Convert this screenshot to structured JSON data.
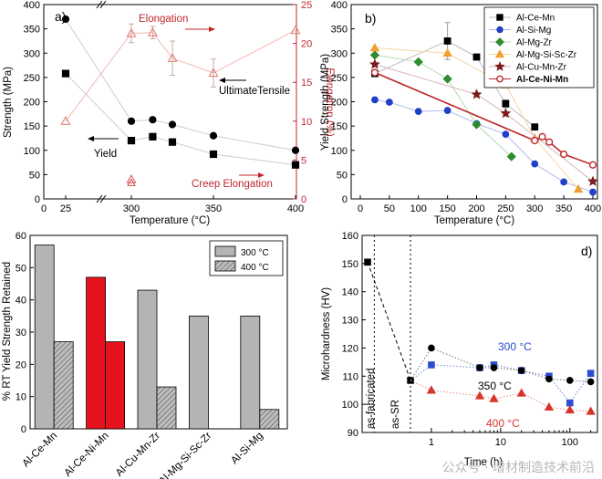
{
  "watermark": "公众号 · 增材制造技术前沿",
  "chart_data": [
    {
      "panel": "a)",
      "type": "scatter",
      "xlabel": "Temperature (°C)",
      "ylabel_left": "Strength (MPa)",
      "ylabel_right": "Elongation (%)",
      "xticks": [
        0,
        25,
        300,
        350,
        400
      ],
      "xtick_labels": [
        "0",
        "25",
        "300",
        "350",
        "400"
      ],
      "ylim_left": [
        0,
        400
      ],
      "ylim_right": [
        0,
        25
      ],
      "axis_break": "between 25 and 300",
      "series": [
        {
          "name": "Yield",
          "marker": "filled-square",
          "color": "#000000",
          "x": [
            25,
            300,
            313,
            325,
            350,
            400
          ],
          "y": [
            258,
            120,
            128,
            117,
            92,
            70
          ]
        },
        {
          "name": "UltimateTensile",
          "marker": "filled-circle",
          "color": "#000000",
          "x": [
            25,
            300,
            313,
            325,
            350,
            400
          ],
          "y": [
            370,
            160,
            163,
            153,
            130,
            100
          ]
        },
        {
          "name": "Elongation",
          "marker": "open-triangle",
          "color": "#e07a6e",
          "x": [
            25,
            300,
            313,
            325,
            350,
            400
          ],
          "y": [
            10,
            21.3,
            21.4,
            18.1,
            16.2,
            21.7
          ],
          "err": [
            0,
            1.2,
            0.8,
            2.2,
            1.8,
            0
          ]
        },
        {
          "name": "Creep Elongation",
          "marker": "open-triangle",
          "color": "#d9534f",
          "x": [
            300
          ],
          "y": [
            2.5
          ]
        }
      ],
      "annotations": [
        "Elongation",
        "UltimateTensile",
        "Yield",
        "Creep Elongation"
      ]
    },
    {
      "panel": "b)",
      "type": "line",
      "xlabel": "Temperature (°C)",
      "ylabel": "Yield Strength (MPa)",
      "xlim": [
        0,
        400
      ],
      "ylim": [
        0,
        400
      ],
      "xticks": [
        0,
        50,
        100,
        150,
        200,
        250,
        300,
        350,
        400
      ],
      "yticks": [
        0,
        50,
        100,
        150,
        200,
        250,
        300,
        350,
        400
      ],
      "legend_position": "top-right",
      "series": [
        {
          "name": "Al-Ce-Mn",
          "marker": "square",
          "color": "#000000",
          "x": [
            25,
            150,
            200,
            250,
            300
          ],
          "y": [
            258,
            325,
            292,
            196,
            148
          ],
          "err": [
            0,
            38,
            0,
            8,
            0
          ]
        },
        {
          "name": "Al-Si-Mg",
          "marker": "circle",
          "color": "#2040c8",
          "x": [
            25,
            50,
            100,
            150,
            200,
            250,
            300,
            350,
            400
          ],
          "y": [
            204,
            199,
            180,
            182,
            155,
            133,
            72,
            35,
            14
          ]
        },
        {
          "name": "Al-Mg-Zr",
          "marker": "diamond",
          "color": "#2e8b2e",
          "x": [
            25,
            100,
            150,
            200,
            260
          ],
          "y": [
            296,
            282,
            247,
            153,
            87
          ]
        },
        {
          "name": "Al-Mg-Si-Sc-Zr",
          "marker": "triangle",
          "color": "#f0a030",
          "x": [
            25,
            150,
            250,
            300,
            375
          ],
          "y": [
            311,
            300,
            235,
            125,
            20
          ]
        },
        {
          "name": "Al-Cu-Mn-Zr",
          "marker": "star",
          "color": "#7a1c1c",
          "x": [
            25,
            200,
            250,
            400
          ],
          "y": [
            277,
            215,
            176,
            36
          ]
        },
        {
          "name": "Al-Ce-Ni-Mn",
          "marker": "open-circle",
          "color": "#c0282e",
          "x": [
            25,
            300,
            313,
            325,
            350,
            400
          ],
          "y": [
            260,
            120,
            128,
            117,
            92,
            70
          ]
        }
      ]
    },
    {
      "panel": "c)",
      "type": "bar",
      "ylabel": "% RT Yield Strength Retained",
      "ylim": [
        0,
        60
      ],
      "yticks": [
        0,
        10,
        20,
        30,
        40,
        50,
        60
      ],
      "categories": [
        "Al-Ce-Mn",
        "Al-Ce-Ni-Mn",
        "Al-Cu-Mn-Zr",
        "Al-Mg-Si-Sc-Zr",
        "Al-Si-Mg"
      ],
      "legend_position": "top-right",
      "series": [
        {
          "name": "300 °C",
          "values": [
            57,
            47,
            43,
            35,
            35
          ]
        },
        {
          "name": "400 °C",
          "values": [
            27,
            27,
            13,
            0,
            6
          ]
        }
      ],
      "highlight_category": "Al-Ce-Ni-Mn",
      "highlight_color": "#e8121e"
    },
    {
      "panel": "d)",
      "type": "line",
      "xlabel": "Time (h)",
      "ylabel": "Microhardness (HV)",
      "xscale": "log",
      "xlim": [
        0.1,
        250
      ],
      "ylim": [
        90,
        160
      ],
      "xtick_labels": [
        "1",
        "10",
        "100"
      ],
      "yticks": [
        90,
        100,
        110,
        120,
        130,
        140,
        150,
        160
      ],
      "region_labels": [
        "as-fabricated",
        "as-SR"
      ],
      "series": [
        {
          "name": "as-fabricated",
          "marker": "square",
          "color": "#000000",
          "x": [
            0.12,
            0.5
          ],
          "y": [
            150.5,
            108.5
          ]
        },
        {
          "name": "300 °C",
          "marker": "square",
          "color": "#2b4fcf",
          "x": [
            0.5,
            1,
            5,
            8,
            20,
            50,
            100,
            200
          ],
          "y": [
            108.5,
            114,
            113,
            114,
            112,
            110,
            100.5,
            111
          ]
        },
        {
          "name": "350 °C",
          "marker": "circle",
          "color": "#000000",
          "x": [
            0.5,
            1,
            5,
            8,
            20,
            50,
            100,
            200
          ],
          "y": [
            108.5,
            120,
            113,
            113,
            112,
            109,
            108.5,
            108
          ]
        },
        {
          "name": "400 °C",
          "marker": "triangle",
          "color": "#d9342b",
          "x": [
            0.5,
            1,
            5,
            8,
            20,
            50,
            100,
            200
          ],
          "y": [
            108.5,
            105,
            103,
            102,
            104,
            99,
            98,
            97.5
          ]
        }
      ]
    }
  ]
}
